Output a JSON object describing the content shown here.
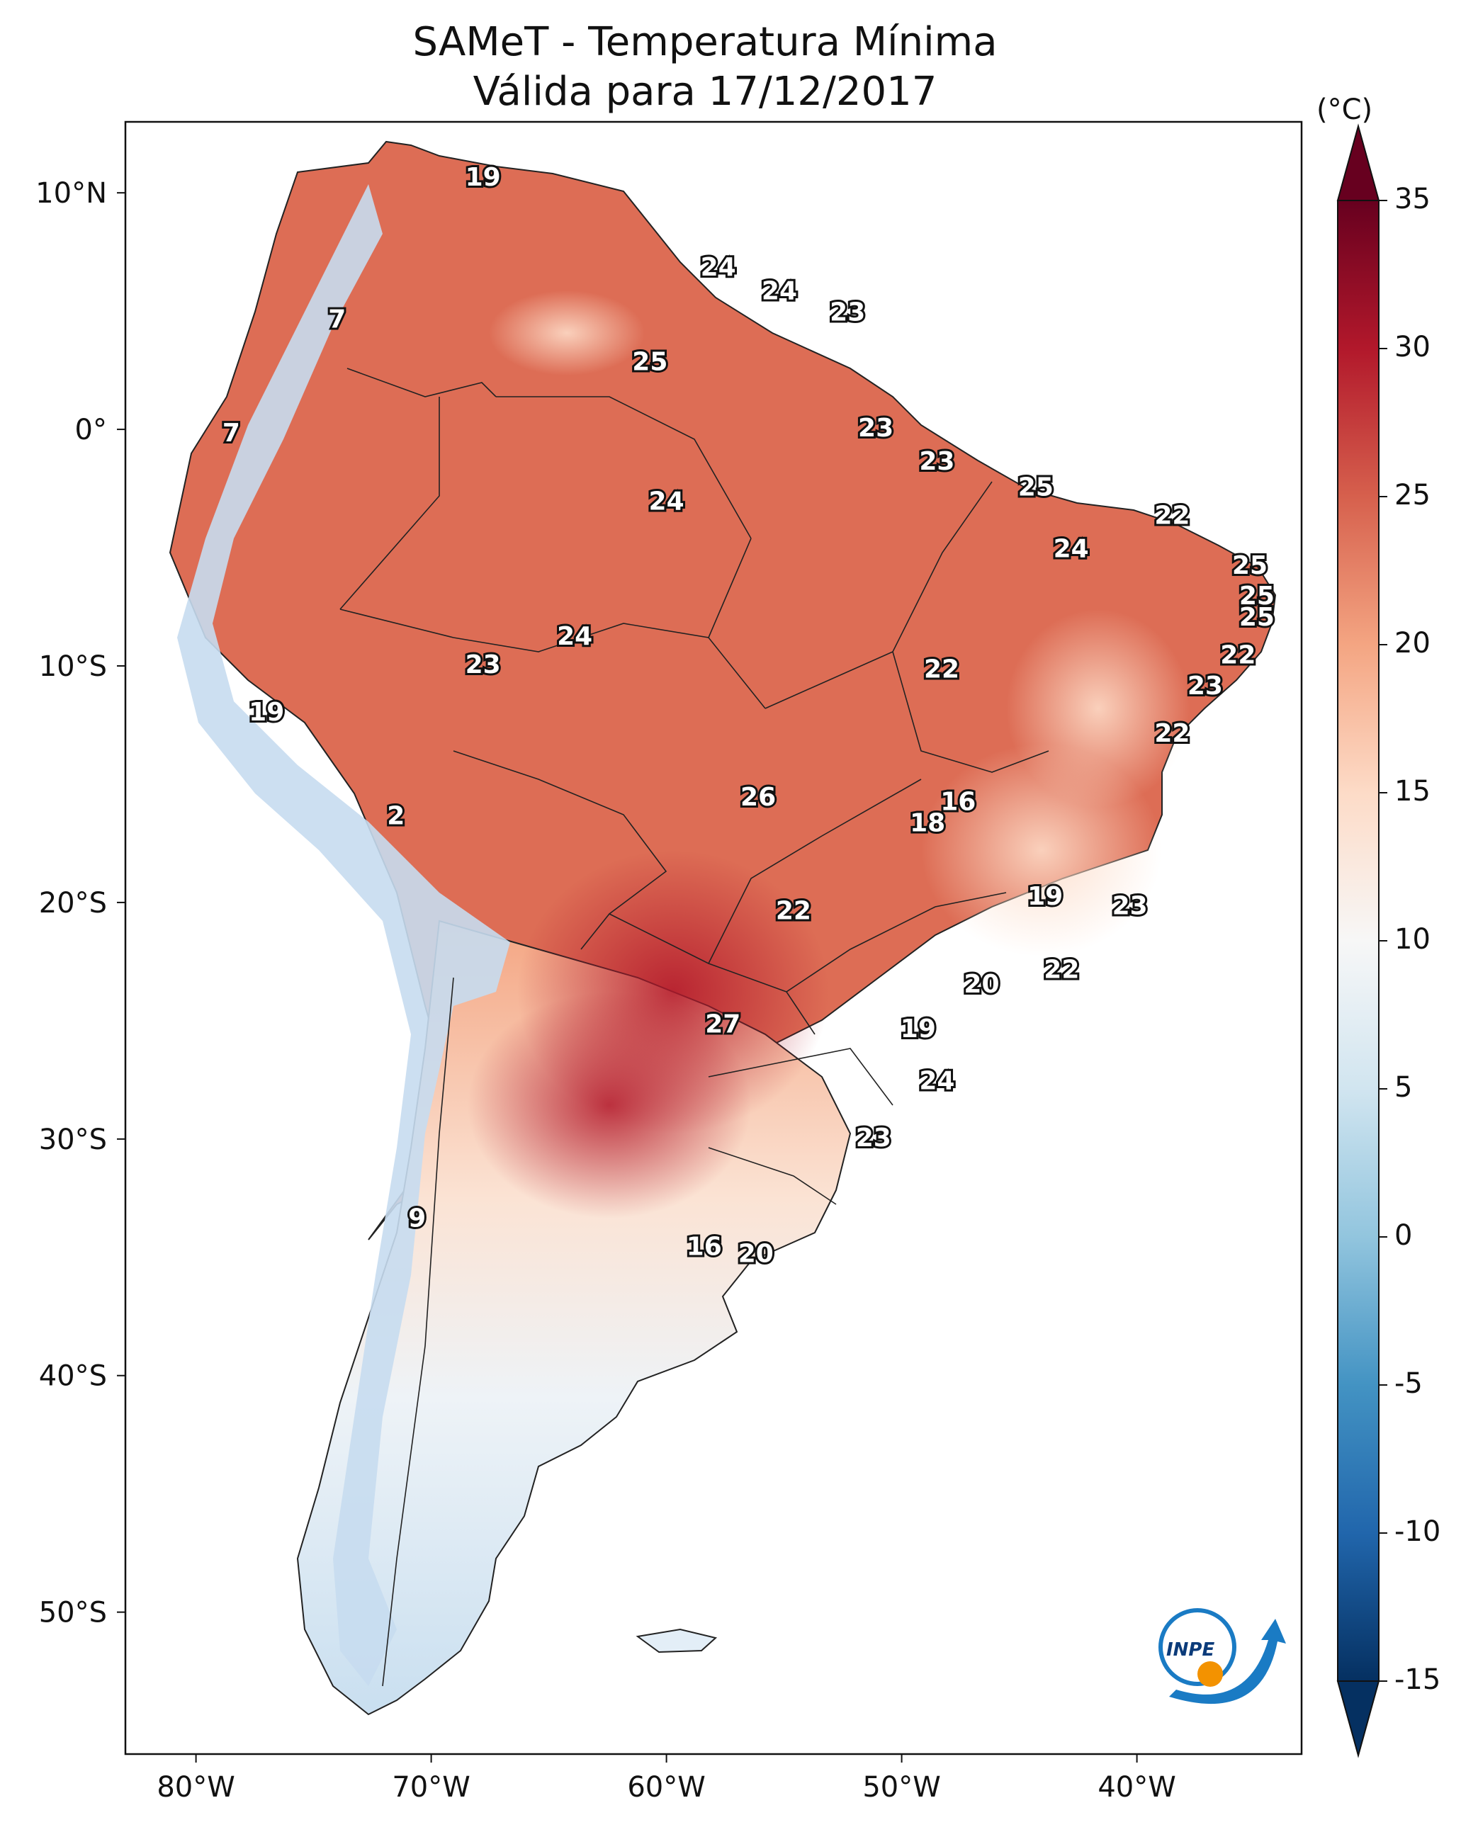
{
  "title": {
    "line1": "SAMeT - Temperatura Mínima",
    "line2": "Válida para 17/12/2017"
  },
  "map": {
    "lon_range": [
      -83,
      -33
    ],
    "lat_range": [
      -56,
      13
    ],
    "lon_ticks": [
      {
        "value": -80,
        "label": "80°W"
      },
      {
        "value": -70,
        "label": "70°W"
      },
      {
        "value": -60,
        "label": "60°W"
      },
      {
        "value": -50,
        "label": "50°W"
      },
      {
        "value": -40,
        "label": "40°W"
      }
    ],
    "lat_ticks": [
      {
        "value": 10,
        "label": "10°N"
      },
      {
        "value": 0,
        "label": "0°"
      },
      {
        "value": -10,
        "label": "10°S"
      },
      {
        "value": -20,
        "label": "20°S"
      },
      {
        "value": -30,
        "label": "30°S"
      },
      {
        "value": -40,
        "label": "40°S"
      },
      {
        "value": -50,
        "label": "50°S"
      }
    ],
    "station_labels": [
      {
        "lon": -67.8,
        "lat": 10.6,
        "text": "19"
      },
      {
        "lon": -74.0,
        "lat": 4.6,
        "text": "7"
      },
      {
        "lon": -78.5,
        "lat": -0.2,
        "text": "7"
      },
      {
        "lon": -57.8,
        "lat": 6.8,
        "text": "24"
      },
      {
        "lon": -55.2,
        "lat": 5.8,
        "text": "24"
      },
      {
        "lon": -52.3,
        "lat": 4.9,
        "text": "23"
      },
      {
        "lon": -60.7,
        "lat": 2.8,
        "text": "25"
      },
      {
        "lon": -51.1,
        "lat": 0.0,
        "text": "23"
      },
      {
        "lon": -48.5,
        "lat": -1.4,
        "text": "23"
      },
      {
        "lon": -60.0,
        "lat": -3.1,
        "text": "24"
      },
      {
        "lon": -44.3,
        "lat": -2.5,
        "text": "25"
      },
      {
        "lon": -38.5,
        "lat": -3.7,
        "text": "22"
      },
      {
        "lon": -42.8,
        "lat": -5.1,
        "text": "24"
      },
      {
        "lon": -35.2,
        "lat": -5.8,
        "text": "25"
      },
      {
        "lon": -34.9,
        "lat": -7.1,
        "text": "25"
      },
      {
        "lon": -34.9,
        "lat": -8.0,
        "text": "25"
      },
      {
        "lon": -35.7,
        "lat": -9.6,
        "text": "22"
      },
      {
        "lon": -37.1,
        "lat": -10.9,
        "text": "23"
      },
      {
        "lon": -38.5,
        "lat": -12.9,
        "text": "22"
      },
      {
        "lon": -48.3,
        "lat": -10.2,
        "text": "22"
      },
      {
        "lon": -63.9,
        "lat": -8.8,
        "text": "24"
      },
      {
        "lon": -67.8,
        "lat": -10.0,
        "text": "23"
      },
      {
        "lon": -77.0,
        "lat": -12.0,
        "text": "19"
      },
      {
        "lon": -56.1,
        "lat": -15.6,
        "text": "26"
      },
      {
        "lon": -48.9,
        "lat": -16.7,
        "text": "18"
      },
      {
        "lon": -47.6,
        "lat": -15.8,
        "text": "16"
      },
      {
        "lon": -71.5,
        "lat": -16.4,
        "text": "2"
      },
      {
        "lon": -54.6,
        "lat": -20.4,
        "text": "22"
      },
      {
        "lon": -43.9,
        "lat": -19.8,
        "text": "19"
      },
      {
        "lon": -40.3,
        "lat": -20.2,
        "text": "23"
      },
      {
        "lon": -43.2,
        "lat": -22.9,
        "text": "22"
      },
      {
        "lon": -46.6,
        "lat": -23.5,
        "text": "20"
      },
      {
        "lon": -57.6,
        "lat": -25.2,
        "text": "27"
      },
      {
        "lon": -49.3,
        "lat": -25.4,
        "text": "19"
      },
      {
        "lon": -48.5,
        "lat": -27.6,
        "text": "24"
      },
      {
        "lon": -51.2,
        "lat": -30.0,
        "text": "23"
      },
      {
        "lon": -70.6,
        "lat": -33.4,
        "text": "9"
      },
      {
        "lon": -58.4,
        "lat": -34.6,
        "text": "16"
      },
      {
        "lon": -56.2,
        "lat": -34.9,
        "text": "20"
      }
    ]
  },
  "colorbar": {
    "unit_label": "(°C)",
    "min": -15,
    "max": 35,
    "ticks": [
      {
        "value": 35,
        "label": "35"
      },
      {
        "value": 30,
        "label": "30"
      },
      {
        "value": 25,
        "label": "25"
      },
      {
        "value": 20,
        "label": "20"
      },
      {
        "value": 15,
        "label": "15"
      },
      {
        "value": 10,
        "label": "10"
      },
      {
        "value": 5,
        "label": "5"
      },
      {
        "value": 0,
        "label": "0"
      },
      {
        "value": -5,
        "label": "-5"
      },
      {
        "value": -10,
        "label": "-10"
      },
      {
        "value": -15,
        "label": "-15"
      }
    ],
    "color_stops": [
      {
        "value": -15,
        "color": "#053061"
      },
      {
        "value": -10,
        "color": "#2166ac"
      },
      {
        "value": -5,
        "color": "#4393c3"
      },
      {
        "value": 0,
        "color": "#92c5de"
      },
      {
        "value": 5,
        "color": "#d1e5f0"
      },
      {
        "value": 10,
        "color": "#f7f7f7"
      },
      {
        "value": 15,
        "color": "#fddbc7"
      },
      {
        "value": 20,
        "color": "#f4a582"
      },
      {
        "value": 25,
        "color": "#d6604d"
      },
      {
        "value": 30,
        "color": "#b2182b"
      },
      {
        "value": 35,
        "color": "#67001f"
      }
    ]
  },
  "logo": {
    "text": "INPE",
    "colors": {
      "blue": "#1a7bc4",
      "orange": "#f39200"
    }
  }
}
